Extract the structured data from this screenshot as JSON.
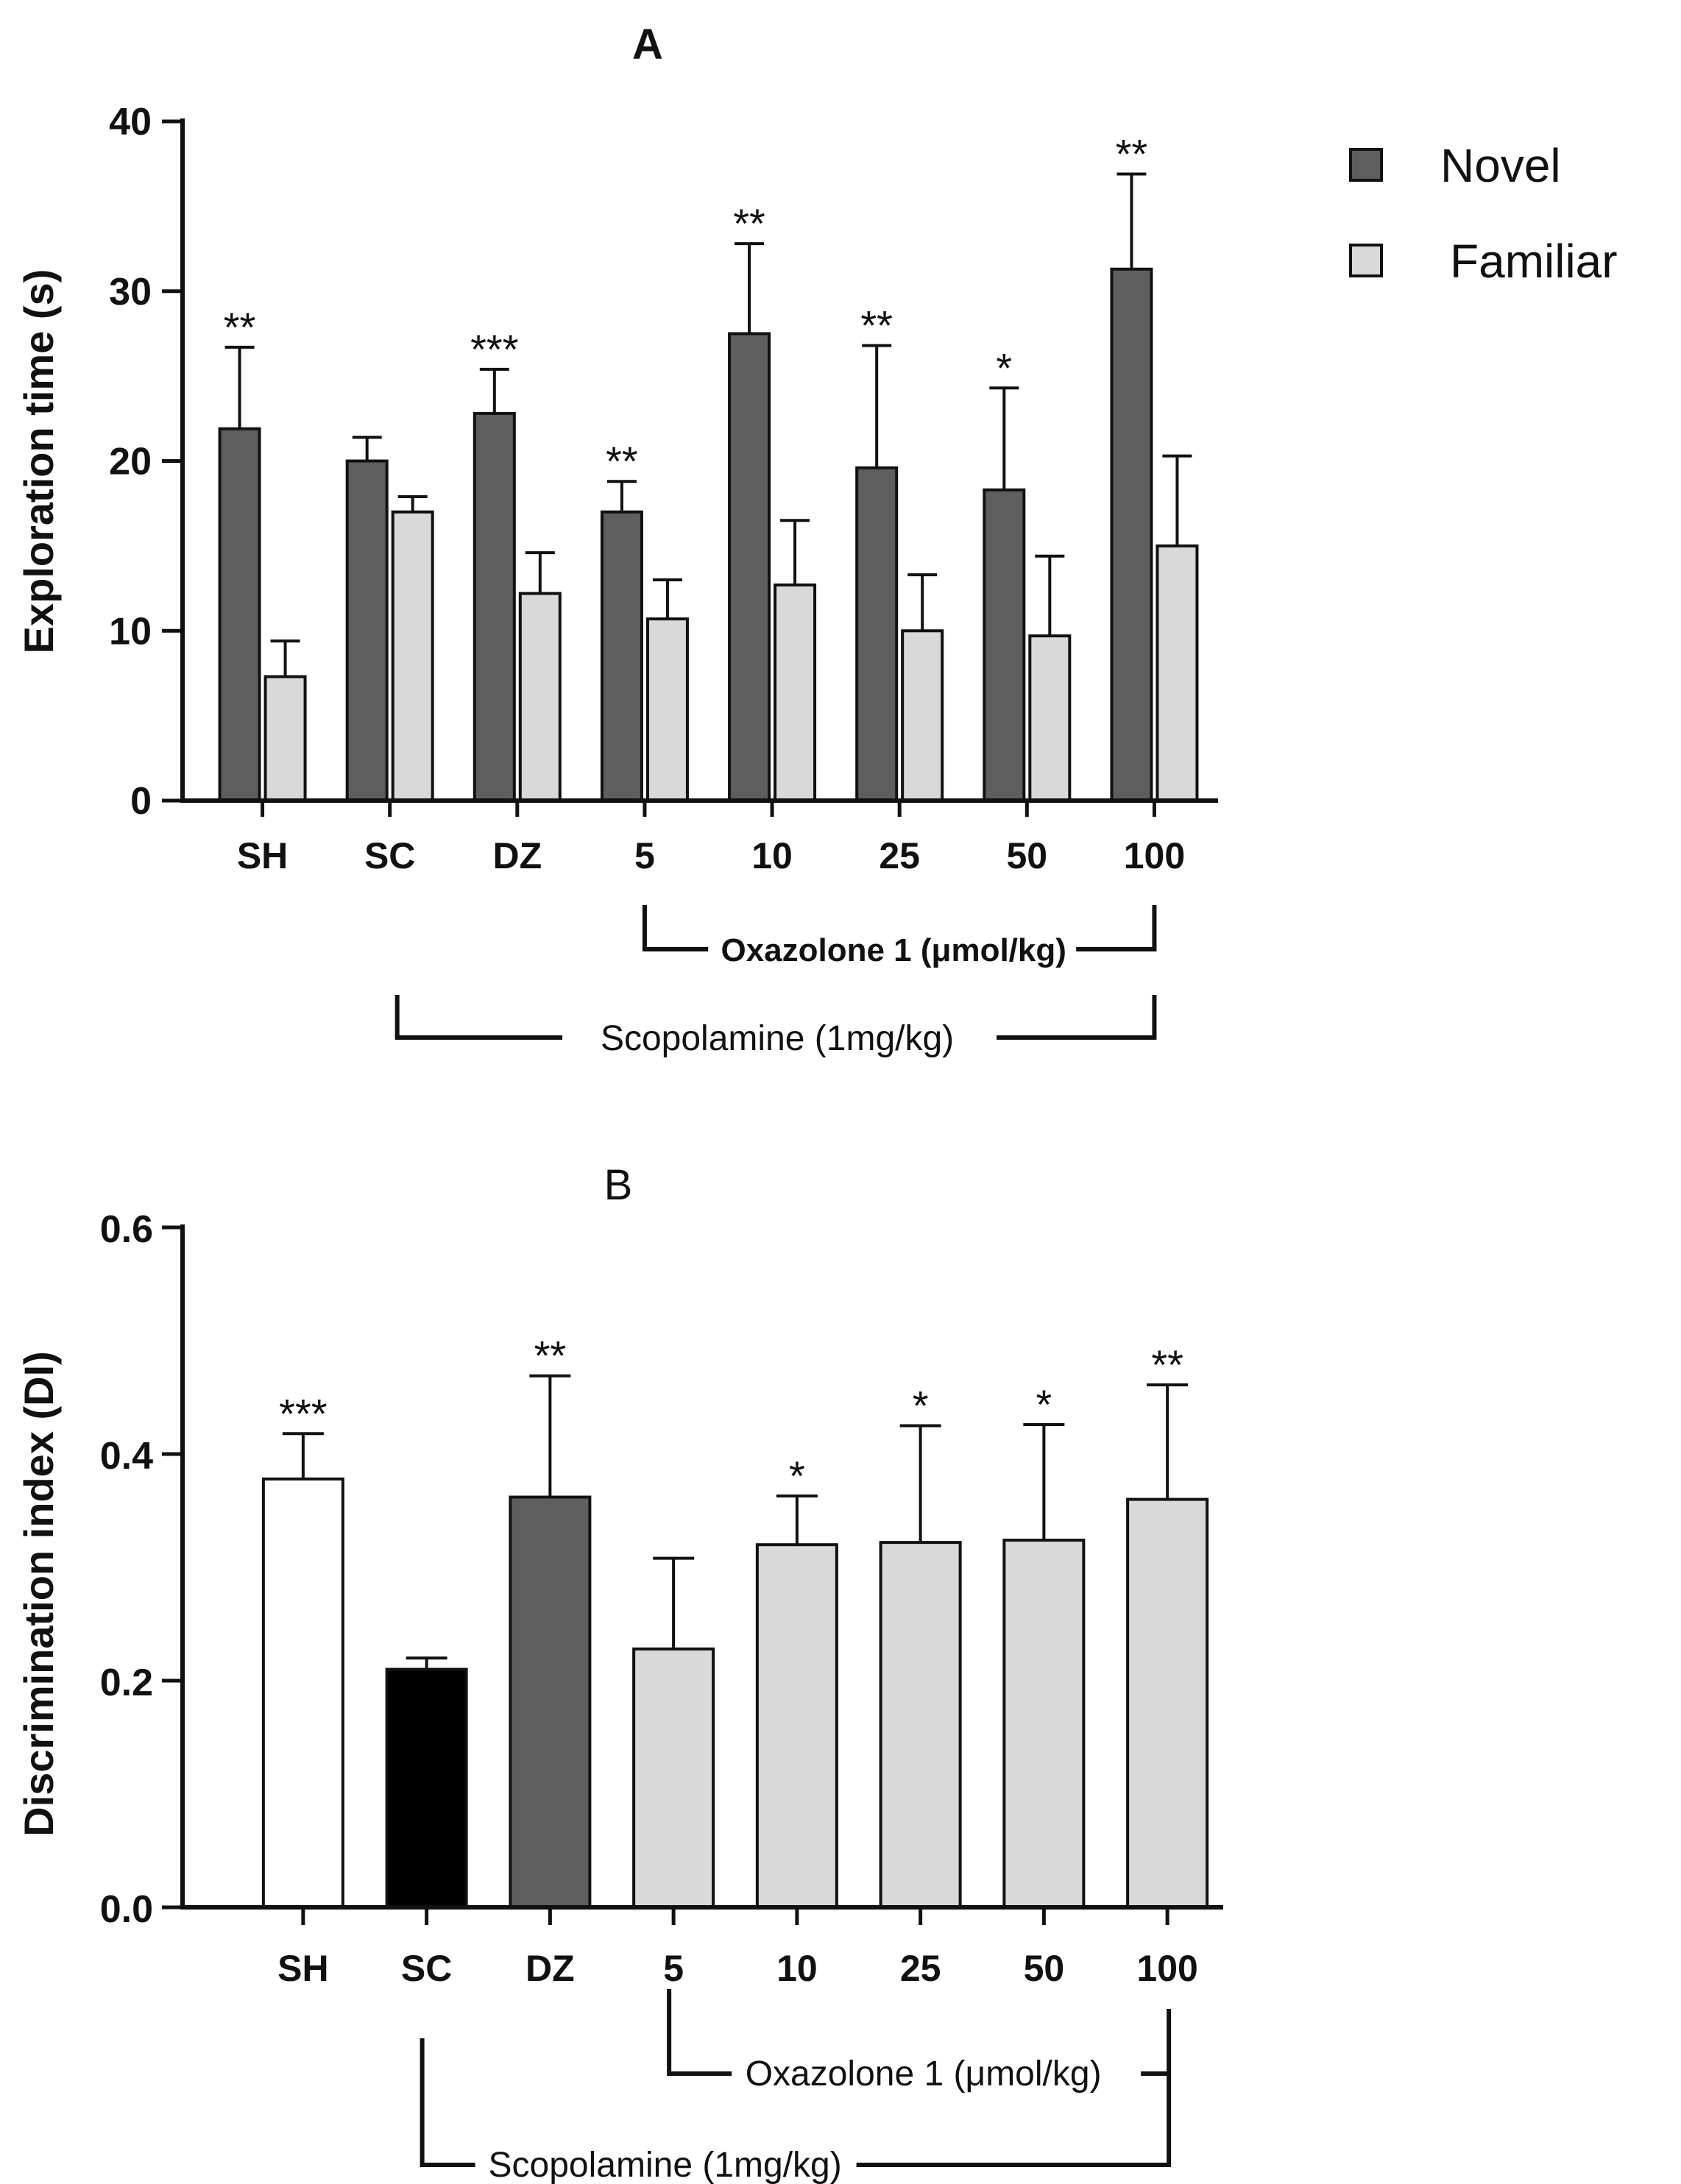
{
  "chart_data": [
    {
      "type": "bar",
      "title": "A",
      "ylabel": "Exploration time (s)",
      "ylim": [
        0,
        40
      ],
      "yticks": [
        0,
        10,
        20,
        30,
        40
      ],
      "categories": [
        "SH",
        "SC",
        "DZ",
        "5",
        "10",
        "25",
        "50",
        "100"
      ],
      "legend_position": "top-right",
      "series": [
        {
          "name": "Novel",
          "color": "#5e5e5e",
          "values": [
            21.9,
            20.0,
            22.8,
            17.0,
            27.5,
            19.6,
            18.3,
            31.3
          ],
          "errors": [
            4.8,
            1.4,
            2.6,
            1.8,
            5.3,
            7.2,
            6.0,
            5.6
          ],
          "significance": [
            "**",
            "",
            "***",
            "**",
            "**",
            "**",
            "*",
            "**"
          ]
        },
        {
          "name": "Familiar",
          "color": "#d9d9d9",
          "values": [
            7.3,
            17.0,
            12.2,
            10.7,
            12.7,
            10.0,
            9.7,
            15.0
          ],
          "errors": [
            2.1,
            0.9,
            2.4,
            2.3,
            3.8,
            3.3,
            4.7,
            5.3
          ],
          "significance": [
            "",
            "",
            "",
            "",
            "",
            "",
            "",
            ""
          ]
        }
      ],
      "brackets": [
        {
          "label": "Oxazolone 1 (μmol/kg)",
          "from": "5",
          "to": "100"
        },
        {
          "label": "Scopolamine (1mg/kg)",
          "from": "SC",
          "to": "100"
        }
      ]
    },
    {
      "type": "bar",
      "title": "B",
      "ylabel": "Discrimination index (DI)",
      "ylim": [
        0,
        0.6
      ],
      "yticks": [
        "0.0",
        "0.2",
        "0.4",
        "0.6"
      ],
      "categories": [
        "SH",
        "SC",
        "DZ",
        "5",
        "10",
        "25",
        "50",
        "100"
      ],
      "values": [
        0.378,
        0.21,
        0.362,
        0.228,
        0.32,
        0.322,
        0.324,
        0.36
      ],
      "errors": [
        0.04,
        0.01,
        0.107,
        0.08,
        0.043,
        0.103,
        0.102,
        0.101
      ],
      "colors": [
        "#ffffff",
        "#000000",
        "#5e5e5e",
        "#d9d9d9",
        "#d9d9d9",
        "#d9d9d9",
        "#d9d9d9",
        "#d9d9d9"
      ],
      "significance": [
        "***",
        "",
        "**",
        "",
        "*",
        "*",
        "*",
        "**"
      ],
      "brackets": [
        {
          "label": "Oxazolone 1 (μmol/kg)",
          "from": "5",
          "to": "100"
        },
        {
          "label": "Scopolamine (1mg/kg)",
          "from": "SC",
          "to": "100"
        }
      ]
    }
  ]
}
